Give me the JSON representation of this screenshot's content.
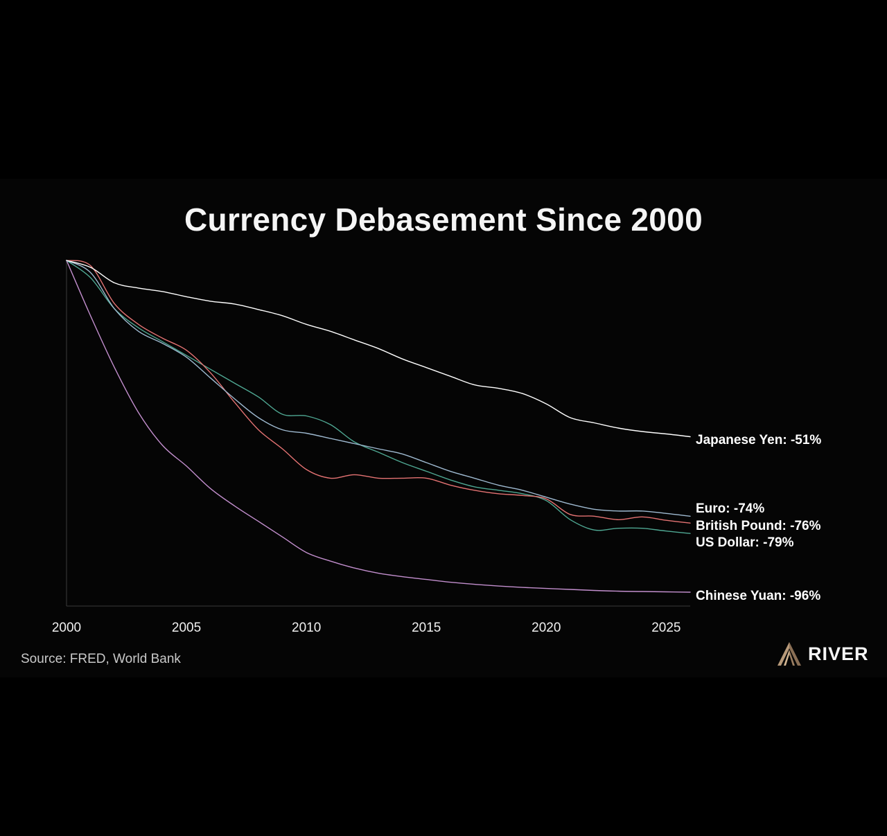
{
  "chart_data": {
    "type": "line",
    "title": "Currency Debasement Since 2000",
    "xlabel": "",
    "ylabel": "",
    "xlim": [
      2000,
      2026
    ],
    "ylim": [
      -100,
      0
    ],
    "xticks": [
      2000,
      2005,
      2010,
      2015,
      2020,
      2025
    ],
    "grid": false,
    "legend": "direct labels at line ends (right)",
    "series": [
      {
        "name": "Japanese Yen",
        "label": "Japanese Yen: -51%",
        "color": "#ffffff",
        "x": [
          2000,
          2001,
          2002,
          2003,
          2004,
          2005,
          2006,
          2007,
          2008,
          2009,
          2010,
          2011,
          2012,
          2013,
          2014,
          2015,
          2016,
          2017,
          2018,
          2019,
          2020,
          2021,
          2022,
          2023,
          2024,
          2025,
          2026
        ],
        "values": [
          0,
          -2,
          -6.5,
          -8,
          -9,
          -10.5,
          -11.8,
          -12.6,
          -14.2,
          -16,
          -18.5,
          -20.5,
          -23,
          -25.5,
          -28.5,
          -31,
          -33.5,
          -36,
          -37,
          -38.5,
          -41.5,
          -45.5,
          -47,
          -48.5,
          -49.5,
          -50.2,
          -51
        ]
      },
      {
        "name": "Euro",
        "label": "Euro: -74%",
        "color": "#9fbad1",
        "x": [
          2000,
          2001,
          2002,
          2003,
          2004,
          2005,
          2006,
          2007,
          2008,
          2009,
          2010,
          2011,
          2012,
          2013,
          2014,
          2015,
          2016,
          2017,
          2018,
          2019,
          2020,
          2021,
          2022,
          2023,
          2024,
          2025,
          2026
        ],
        "values": [
          0,
          -3.5,
          -14,
          -20.5,
          -24,
          -28,
          -34,
          -40,
          -45.5,
          -49,
          -50,
          -51.5,
          -53,
          -54.5,
          -56,
          -58.5,
          -61,
          -63,
          -65,
          -66.5,
          -68.5,
          -70.5,
          -72,
          -72.5,
          -72.5,
          -73.2,
          -74
        ]
      },
      {
        "name": "British Pound",
        "label": "British Pound: -76%",
        "color": "#e57373",
        "x": [
          2000,
          2001,
          2002,
          2003,
          2004,
          2005,
          2006,
          2007,
          2008,
          2009,
          2010,
          2011,
          2012,
          2013,
          2014,
          2015,
          2016,
          2017,
          2018,
          2019,
          2020,
          2021,
          2022,
          2023,
          2024,
          2025,
          2026
        ],
        "values": [
          0,
          -1.5,
          -12.5,
          -18.5,
          -22.5,
          -26,
          -32.5,
          -41,
          -49,
          -54.5,
          -60.5,
          -63,
          -62,
          -63,
          -63,
          -63,
          -65,
          -66.5,
          -67.5,
          -68,
          -69,
          -73.5,
          -74,
          -75,
          -74.2,
          -75.2,
          -76
        ]
      },
      {
        "name": "US Dollar",
        "label": "US Dollar: -79%",
        "color": "#4fa893",
        "x": [
          2000,
          2001,
          2002,
          2003,
          2004,
          2005,
          2006,
          2007,
          2008,
          2009,
          2010,
          2011,
          2012,
          2013,
          2014,
          2015,
          2016,
          2017,
          2018,
          2019,
          2020,
          2021,
          2022,
          2023,
          2024,
          2025,
          2026
        ],
        "values": [
          0,
          -5,
          -14,
          -19.5,
          -23.5,
          -27.5,
          -31.5,
          -35.5,
          -39.5,
          -44.5,
          -45,
          -47.5,
          -52.5,
          -55.5,
          -58.5,
          -61,
          -63.5,
          -65.5,
          -66.5,
          -67.5,
          -69.5,
          -75,
          -78,
          -77.5,
          -77.5,
          -78.3,
          -79
        ]
      },
      {
        "name": "Chinese Yuan",
        "label": "Chinese Yuan: -96%",
        "color": "#c38fce",
        "x": [
          2000,
          2001,
          2002,
          2003,
          2004,
          2005,
          2006,
          2007,
          2008,
          2009,
          2010,
          2011,
          2012,
          2013,
          2014,
          2015,
          2016,
          2017,
          2018,
          2019,
          2020,
          2021,
          2022,
          2023,
          2024,
          2025,
          2026
        ],
        "values": [
          0,
          -16,
          -31,
          -44,
          -53.5,
          -59.5,
          -66,
          -71,
          -75.5,
          -80,
          -84.5,
          -87,
          -89,
          -90.5,
          -91.5,
          -92.3,
          -93.1,
          -93.7,
          -94.2,
          -94.6,
          -94.9,
          -95.2,
          -95.5,
          -95.7,
          -95.8,
          -95.9,
          -96
        ]
      }
    ]
  },
  "footer": {
    "source": "Source: FRED, World Bank",
    "brand": "RIVER"
  }
}
